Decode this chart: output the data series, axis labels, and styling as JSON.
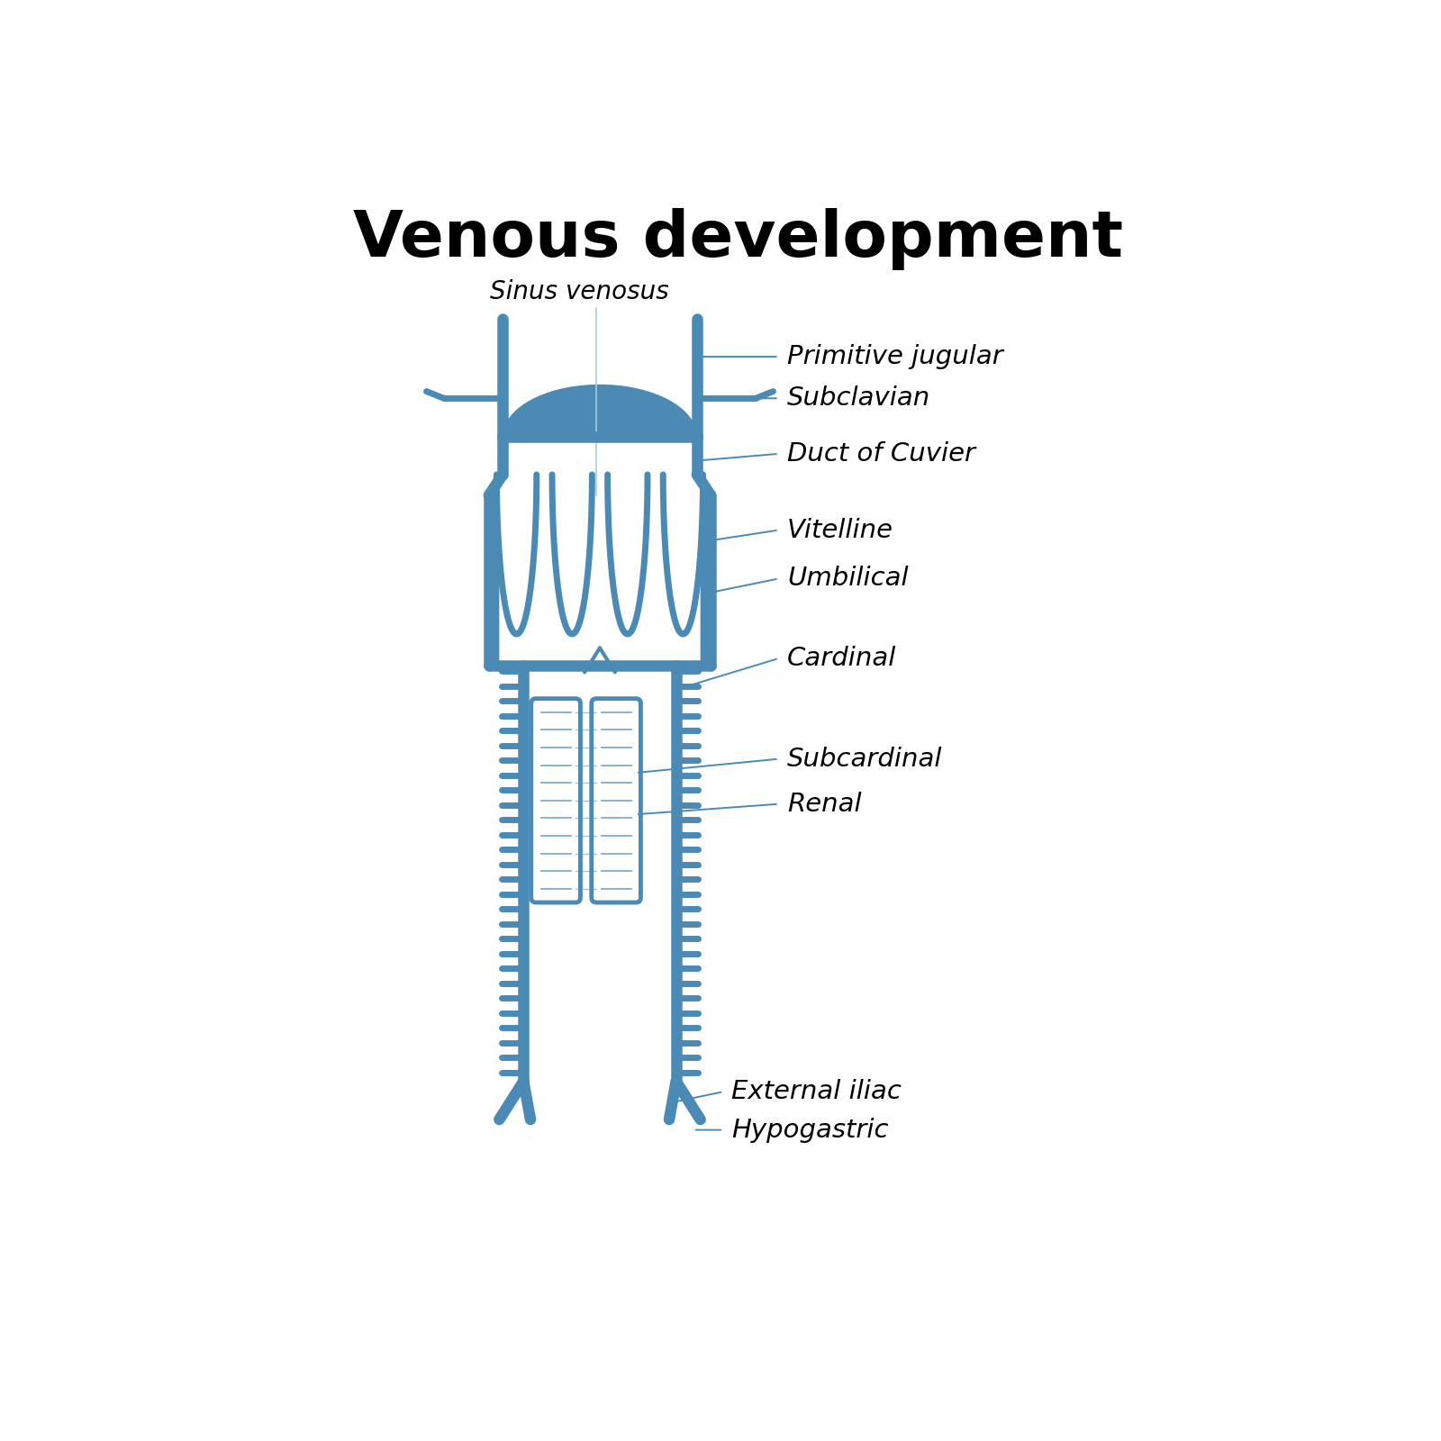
{
  "title": "Venous development",
  "title_fontsize": 52,
  "title_fontweight": "bold",
  "title_color": "#000000",
  "blue_color": "#4a8ab5",
  "background_color": "#ffffff",
  "labels": {
    "sinus_venosus": "Sinus venosus",
    "primitive_jugular": "Primitive jugular",
    "subclavian": "Subclavian",
    "duct_of_cuvier": "Duct of Cuvier",
    "vitelline": "Vitelline",
    "umbilical": "Umbilical",
    "cardinal": "Cardinal",
    "subcardinal": "Subcardinal",
    "renal": "Renal",
    "external_iliac": "External iliac",
    "hypogastric": "Hypogastric"
  },
  "label_fontsize": 21,
  "sinus_venosus_fontsize": 20
}
